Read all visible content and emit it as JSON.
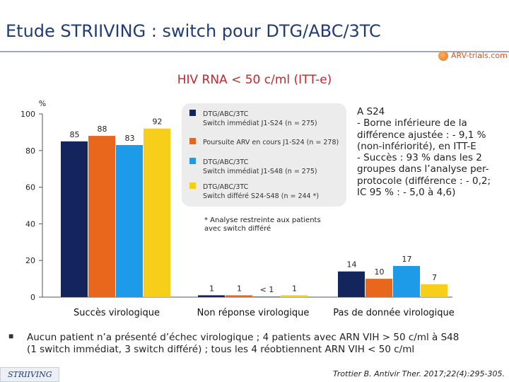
{
  "title": "Etude STRIIVING : switch pour DTG/ABC/3TC",
  "logo_text": "ARV-trials.com",
  "chart_data": {
    "type": "bar",
    "title": "HIV RNA < 50 c/ml (ITT-e)",
    "ylabel": "%",
    "ylim": [
      0,
      100
    ],
    "yticks": [
      0,
      20,
      40,
      60,
      80,
      100
    ],
    "categories": [
      "Succès virologique",
      "Non réponse virologique",
      "Pas de donnée virologique"
    ],
    "series": [
      {
        "name": "DTG/ABC/3TC Switch immédiat J1-S24 (n = 275)",
        "color": "#14245c",
        "values": [
          85,
          1,
          14
        ],
        "labels": [
          "85",
          "1",
          "14"
        ]
      },
      {
        "name": "Poursuite ARV en cours J1-S24 (n = 278)",
        "color": "#e8671c",
        "values": [
          88,
          1,
          10
        ],
        "labels": [
          "88",
          "1",
          "10"
        ]
      },
      {
        "name": "DTG/ABC/3TC Switch immédiat J1-S48 (n = 275)",
        "color": "#1e9be8",
        "values": [
          83,
          0.4,
          17
        ],
        "labels": [
          "83",
          "< 1",
          "17"
        ]
      },
      {
        "name": "DTG/ABC/3TC Switch différé S24-S48 (n = 244 *)",
        "color": "#f7cf1a",
        "values": [
          92,
          1,
          7
        ],
        "labels": [
          "92",
          "1",
          "7"
        ]
      }
    ],
    "legend": [
      {
        "line1": "DTG/ABC/3TC",
        "line2": "Switch immédiat J1-S24 (n = 275)",
        "color": "#14245c"
      },
      {
        "line1": "Poursuite ARV en cours J1-S24 (n = 278)",
        "line2": "",
        "color": "#e8671c"
      },
      {
        "line1": "DTG/ABC/3TC",
        "line2": "Switch immédiat J1-S48 (n = 275)",
        "color": "#1e9be8"
      },
      {
        "line1": "DTG/ABC/3TC",
        "line2": "Switch différé S24-S48 (n = 244 *)",
        "color": "#f7cf1a"
      }
    ]
  },
  "footnote": {
    "line1": "* Analyse restreinte aux patients",
    "line2": "avec switch différé"
  },
  "note": {
    "lines": [
      "A S24",
      "- Borne inférieure de la",
      "différence ajustée : - 9,1 %",
      "(non-infériorité), en ITT-E",
      "- Succès : 93 % dans les 2",
      "groupes dans l’analyse per-",
      "protocole (différence : - 0,2;",
      "IC 95 % : - 5,0 à 4,6)"
    ]
  },
  "bullet_text": {
    "line1": "Aucun patient n’a présenté d’échec virologique ; 4 patients avec ARN VIH > 50 c/ml à S48",
    "line2": "(1 switch immédiat, 3 switch différé) ; tous les 4 réobtiennent ARN VIH < 50 c/ml"
  },
  "footer_tag": "STRIIVING",
  "citation": "Trottier B. Antivir Ther. 2017;22(4):295-305."
}
